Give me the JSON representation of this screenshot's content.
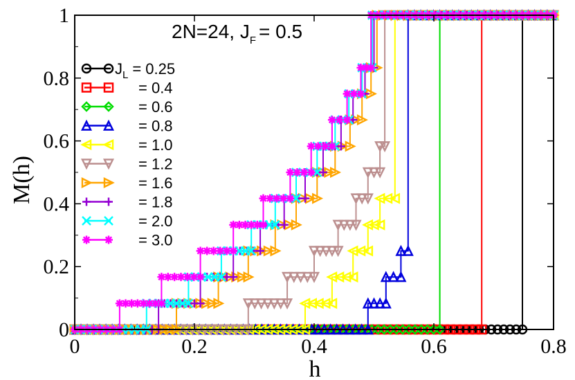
{
  "chart_data": {
    "type": "line",
    "title": "2N=24,  J",
    "title_sub": "F",
    "title_value": "= 0.5",
    "xlabel": "h",
    "ylabel": "M(h)",
    "xlim": [
      0,
      0.8
    ],
    "ylim": [
      0,
      1
    ],
    "x_ticks": [
      0,
      0.2,
      0.4,
      0.6,
      0.8
    ],
    "x_tick_labels": [
      "0",
      "0.2",
      "0.4",
      "0.6",
      "0.8"
    ],
    "y_ticks": [
      0,
      0.2,
      0.4,
      0.6,
      0.8,
      1
    ],
    "y_tick_labels": [
      "0",
      "0.2",
      "0.4",
      "0.6",
      "0.8",
      "1"
    ],
    "legend_position": "left",
    "legend_first_prefix": "J",
    "legend_first_sub": "L",
    "series": [
      {
        "name": "= 0.25",
        "color": "#000000",
        "marker": "circle",
        "steps": [
          [
            0,
            0
          ],
          [
            0.748,
            1
          ]
        ]
      },
      {
        "name": "= 0.4",
        "color": "#ff0000",
        "marker": "square",
        "steps": [
          [
            0,
            0
          ],
          [
            0.68,
            1
          ]
        ]
      },
      {
        "name": "= 0.6",
        "color": "#00dd00",
        "marker": "diamond",
        "steps": [
          [
            0,
            0
          ],
          [
            0.61,
            1
          ]
        ]
      },
      {
        "name": "= 0.8",
        "color": "#0000dd",
        "marker": "triangle-up",
        "steps": [
          [
            0,
            0
          ],
          [
            0.49,
            0.083
          ],
          [
            0.52,
            0.167
          ],
          [
            0.545,
            0.25
          ],
          [
            0.557,
            1
          ]
        ]
      },
      {
        "name": "= 1.0",
        "color": "#ffff00",
        "marker": "triangle-left",
        "steps": [
          [
            0,
            0
          ],
          [
            0.385,
            0.083
          ],
          [
            0.43,
            0.167
          ],
          [
            0.465,
            0.25
          ],
          [
            0.49,
            0.333
          ],
          [
            0.51,
            0.417
          ],
          [
            0.535,
            1
          ]
        ]
      },
      {
        "name": "= 1.2",
        "color": "#bc8f8f",
        "marker": "triangle-down",
        "steps": [
          [
            0,
            0
          ],
          [
            0.29,
            0.083
          ],
          [
            0.355,
            0.167
          ],
          [
            0.4,
            0.25
          ],
          [
            0.44,
            0.333
          ],
          [
            0.47,
            0.417
          ],
          [
            0.49,
            0.5
          ],
          [
            0.51,
            0.583
          ],
          [
            0.518,
            1
          ]
        ]
      },
      {
        "name": "= 1.6",
        "color": "#ffa500",
        "marker": "triangle-right",
        "steps": [
          [
            0,
            0
          ],
          [
            0.17,
            0.083
          ],
          [
            0.24,
            0.167
          ],
          [
            0.29,
            0.25
          ],
          [
            0.335,
            0.333
          ],
          [
            0.37,
            0.417
          ],
          [
            0.405,
            0.5
          ],
          [
            0.435,
            0.583
          ],
          [
            0.46,
            0.667
          ],
          [
            0.48,
            0.75
          ],
          [
            0.495,
            0.833
          ],
          [
            0.505,
            1
          ]
        ]
      },
      {
        "name": "= 1.8",
        "color": "#9400d3",
        "marker": "plus",
        "steps": [
          [
            0,
            0
          ],
          [
            0.14,
            0.083
          ],
          [
            0.21,
            0.167
          ],
          [
            0.265,
            0.25
          ],
          [
            0.31,
            0.333
          ],
          [
            0.35,
            0.417
          ],
          [
            0.385,
            0.5
          ],
          [
            0.415,
            0.583
          ],
          [
            0.445,
            0.667
          ],
          [
            0.465,
            0.75
          ],
          [
            0.485,
            0.833
          ],
          [
            0.5,
            1
          ]
        ]
      },
      {
        "name": "= 2.0",
        "color": "#00ffff",
        "marker": "cross",
        "steps": [
          [
            0,
            0
          ],
          [
            0.12,
            0.083
          ],
          [
            0.19,
            0.167
          ],
          [
            0.245,
            0.25
          ],
          [
            0.295,
            0.333
          ],
          [
            0.335,
            0.417
          ],
          [
            0.37,
            0.5
          ],
          [
            0.405,
            0.583
          ],
          [
            0.435,
            0.667
          ],
          [
            0.458,
            0.75
          ],
          [
            0.48,
            0.833
          ],
          [
            0.497,
            1
          ]
        ]
      },
      {
        "name": "= 3.0",
        "color": "#ff00ff",
        "marker": "star",
        "steps": [
          [
            0,
            0
          ],
          [
            0.075,
            0.083
          ],
          [
            0.145,
            0.167
          ],
          [
            0.21,
            0.25
          ],
          [
            0.265,
            0.333
          ],
          [
            0.315,
            0.417
          ],
          [
            0.36,
            0.5
          ],
          [
            0.395,
            0.583
          ],
          [
            0.43,
            0.667
          ],
          [
            0.455,
            0.75
          ],
          [
            0.478,
            0.833
          ],
          [
            0.495,
            1
          ]
        ]
      }
    ]
  }
}
